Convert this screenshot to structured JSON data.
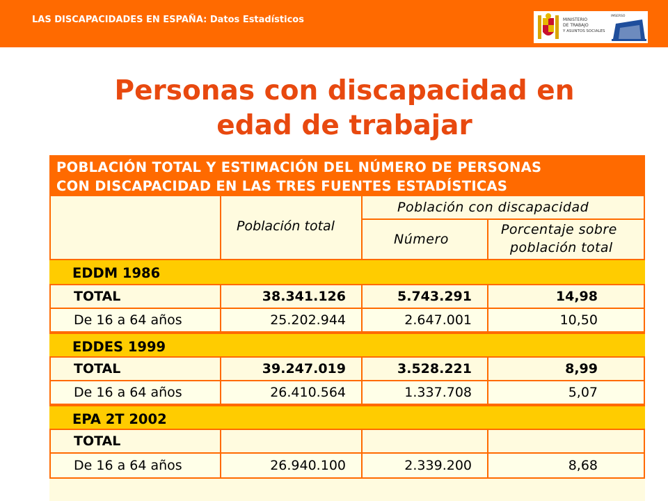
{
  "header": {
    "title": "LAS DISCAPACIDADES EN ESPAÑA: Datos Estadísticos",
    "logo_ministerio_text": [
      "MINISTERIO",
      "DE TRABAJO",
      "Y ASUNTOS SOCIALES"
    ],
    "logo_inserso_text": "IMSERSO",
    "accent_color": "#ff6a00"
  },
  "page": {
    "title_line1": "Personas con discapacidad en",
    "title_line2": "edad de trabajar",
    "title_color": "#e8490f"
  },
  "table": {
    "title_line1": "POBLACIÓN TOTAL Y ESTIMACIÓN DEL NÚMERO DE PERSONAS",
    "title_line2": "CON DISCAPACIDAD EN LAS TRES FUENTES ESTADÍSTICAS",
    "col_poblacion_total": "Población total",
    "col_poblacion_discapacidad": "Población con discapacidad",
    "col_numero": "Número",
    "col_porcentaje_line1": "Porcentaje sobre",
    "col_porcentaje_line2": "población total",
    "sources": [
      {
        "name": "EDDM 1986",
        "rows": [
          {
            "label": "TOTAL",
            "poblacion": "38.341.126",
            "numero": "5.743.291",
            "porcentaje": "14,98"
          },
          {
            "label": "De 16 a 64 años",
            "poblacion": "25.202.944",
            "numero": "2.647.001",
            "porcentaje": "10,50"
          }
        ]
      },
      {
        "name": "EDDES 1999",
        "rows": [
          {
            "label": "TOTAL",
            "poblacion": "39.247.019",
            "numero": "3.528.221",
            "porcentaje": "8,99"
          },
          {
            "label": "De 16 a 64 años",
            "poblacion": "26.410.564",
            "numero": "1.337.708",
            "porcentaje": "5,07"
          }
        ]
      },
      {
        "name": "EPA 2T 2002",
        "rows": [
          {
            "label": "TOTAL",
            "poblacion": "",
            "numero": "",
            "porcentaje": ""
          },
          {
            "label": "De 16 a 64 años",
            "poblacion": "26.940.100",
            "numero": "2.339.200",
            "porcentaje": "8,68"
          }
        ]
      }
    ]
  }
}
